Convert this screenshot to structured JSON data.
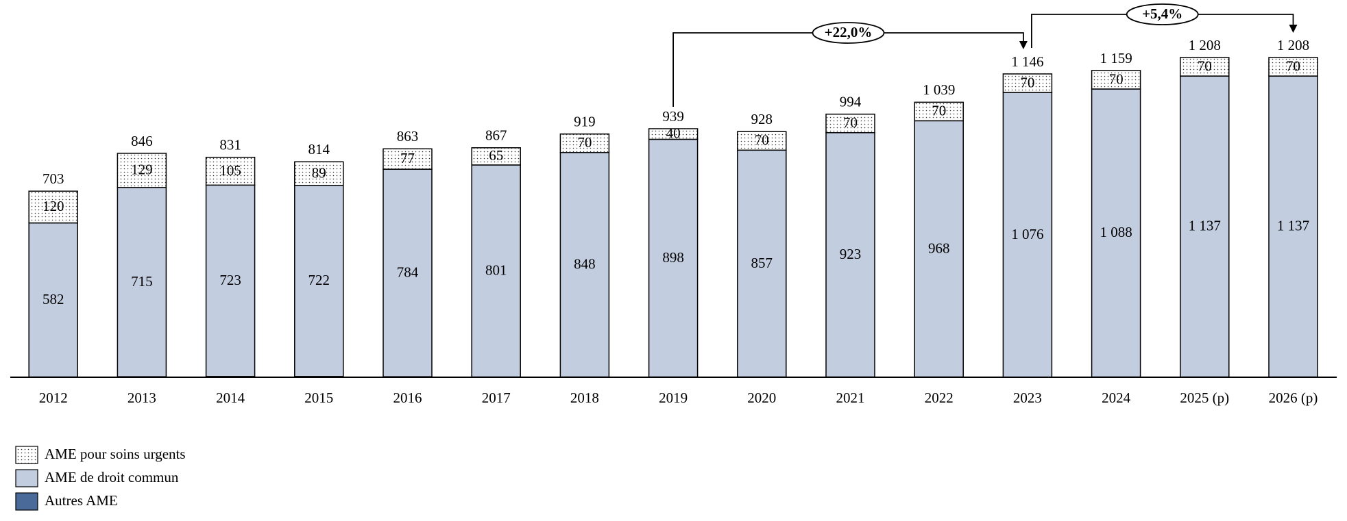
{
  "chart_data": {
    "type": "stacked-bar",
    "categories": [
      "2012",
      "2013",
      "2014",
      "2015",
      "2016",
      "2017",
      "2018",
      "2019",
      "2020",
      "2021",
      "2022",
      "2023",
      "2024",
      "2025 (p)",
      "2026 (p)"
    ],
    "series": [
      {
        "name": "Autres AME",
        "color": "#4a6a9a",
        "values": [
          1,
          2,
          3,
          3,
          2,
          1,
          1,
          1,
          1,
          1,
          1,
          0,
          1,
          1,
          1
        ]
      },
      {
        "name": "AME de droit commun",
        "color": "#c3cde0",
        "values": [
          582,
          715,
          723,
          722,
          784,
          801,
          848,
          898,
          857,
          923,
          968,
          1076,
          1088,
          1137,
          1137
        ],
        "value_labels": [
          "582",
          "715",
          "723",
          "722",
          "784",
          "801",
          "848",
          "898",
          "857",
          "923",
          "968",
          "1 076",
          "1 088",
          "1 137",
          "1 137"
        ]
      },
      {
        "name": "AME pour soins urgents",
        "color": "#ffffff",
        "pattern": "dots",
        "values": [
          120,
          129,
          105,
          89,
          77,
          65,
          70,
          40,
          70,
          70,
          70,
          70,
          70,
          70,
          70
        ]
      }
    ],
    "totals": [
      703,
      846,
      831,
      814,
      863,
      867,
      919,
      939,
      928,
      994,
      1039,
      1146,
      1159,
      1208,
      1208
    ],
    "total_labels": [
      "703",
      "846",
      "831",
      "814",
      "863",
      "867",
      "919",
      "939",
      "928",
      "994",
      "1 039",
      "1 146",
      "1 159",
      "1 208",
      "1 208"
    ],
    "annotations": [
      {
        "text": "+22,0%",
        "from": "2019",
        "to": "2023"
      },
      {
        "text": "+5,4%",
        "from": "2023",
        "to": "2026 (p)"
      }
    ]
  }
}
